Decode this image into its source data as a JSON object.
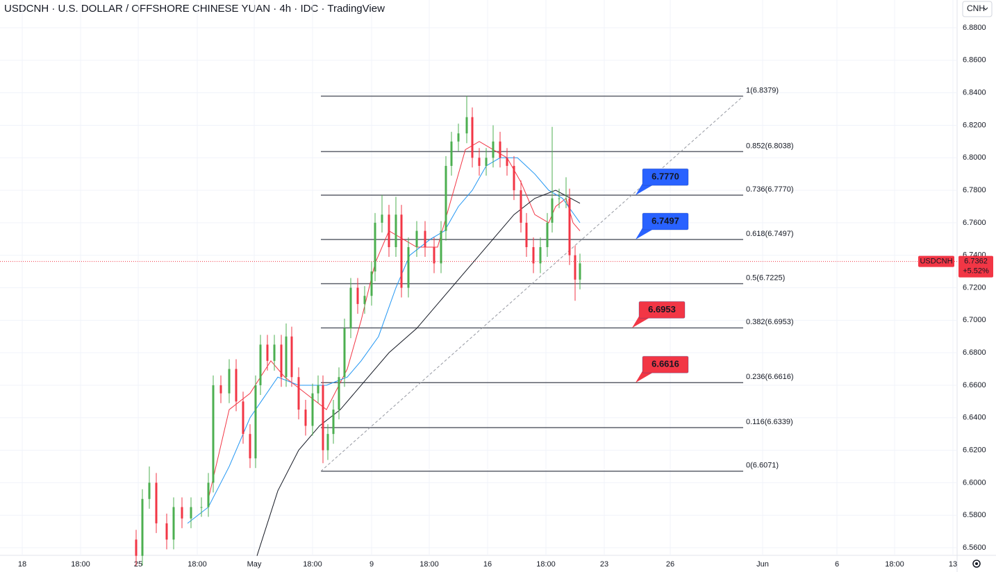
{
  "chart_data": {
    "type": "candlestick",
    "title": "USDCNH · U.S. DOLLAR / OFFSHORE CHINESE YUAN · 4h · IDC · TradingView",
    "currency_button": "CNH",
    "up_color": "#4caf50",
    "down_color": "#f23645",
    "grid": true,
    "ylim": [
      6.5553,
      6.8971
    ],
    "yticks": [
      {
        "value": 6.88,
        "label": "6.8800"
      },
      {
        "value": 6.86,
        "label": "6.8600"
      },
      {
        "value": 6.84,
        "label": "6.8400"
      },
      {
        "value": 6.82,
        "label": "6.8200"
      },
      {
        "value": 6.8,
        "label": "6.8000"
      },
      {
        "value": 6.78,
        "label": "6.7800"
      },
      {
        "value": 6.76,
        "label": "6.7600"
      },
      {
        "value": 6.74,
        "label": "6.7400"
      },
      {
        "value": 6.72,
        "label": "6.7200"
      },
      {
        "value": 6.7,
        "label": "6.7000"
      },
      {
        "value": 6.68,
        "label": "6.6800"
      },
      {
        "value": 6.66,
        "label": "6.6600"
      },
      {
        "value": 6.64,
        "label": "6.6400"
      },
      {
        "value": 6.62,
        "label": "6.6200"
      },
      {
        "value": 6.6,
        "label": "6.6000"
      },
      {
        "value": 6.58,
        "label": "6.5800"
      },
      {
        "value": 6.56,
        "label": "6.5600"
      }
    ],
    "xlim": [
      0,
      275.6
    ],
    "xticks": [
      {
        "value": 6.4,
        "label": "18"
      },
      {
        "value": 23.2,
        "label": "18:00"
      },
      {
        "value": 39.8,
        "label": "25"
      },
      {
        "value": 56.8,
        "label": "18:00"
      },
      {
        "value": 73.2,
        "label": "May"
      },
      {
        "value": 90,
        "label": "18:00"
      },
      {
        "value": 107,
        "label": "9"
      },
      {
        "value": 123.6,
        "label": "18:00"
      },
      {
        "value": 140.4,
        "label": "16"
      },
      {
        "value": 157.2,
        "label": "18:00"
      },
      {
        "value": 174,
        "label": "23"
      },
      {
        "value": 193,
        "label": "26"
      },
      {
        "value": 219.6,
        "label": "Jun"
      },
      {
        "value": 241,
        "label": "6"
      },
      {
        "value": 257.6,
        "label": "18:00"
      },
      {
        "value": 274.4,
        "label": "13"
      }
    ],
    "candles": {
      "x": [
        39.2,
        41,
        43,
        45,
        48,
        50,
        52.4,
        55,
        58,
        60,
        61.4,
        63.6,
        66,
        68,
        70,
        72,
        73.6,
        75,
        77,
        79,
        81,
        82.4,
        84,
        86,
        88,
        90,
        91.6,
        93,
        94.4,
        96,
        97.6,
        99.2,
        101,
        103,
        105,
        107,
        108,
        110,
        112,
        114,
        115.6,
        117.6,
        120,
        122.4,
        125,
        127,
        128.4,
        130,
        132,
        134.4,
        136,
        138,
        140,
        142,
        144,
        146,
        148,
        150,
        151.6,
        153.6,
        155.6,
        157.6,
        159,
        161,
        163,
        164,
        165.6,
        167
      ],
      "open": [
        6.565,
        6.555,
        6.59,
        6.6,
        6.575,
        6.565,
        6.585,
        6.578,
        6.585,
        6.585,
        6.6,
        6.66,
        6.655,
        6.67,
        6.65,
        6.63,
        6.615,
        6.66,
        6.685,
        6.675,
        6.685,
        6.665,
        6.69,
        6.665,
        6.645,
        6.635,
        6.655,
        6.66,
        6.62,
        6.63,
        6.645,
        6.665,
        6.695,
        6.72,
        6.71,
        6.715,
        6.73,
        6.76,
        6.765,
        6.745,
        6.765,
        6.72,
        6.745,
        6.755,
        6.745,
        6.735,
        6.755,
        6.795,
        6.81,
        6.815,
        6.825,
        6.8,
        6.795,
        6.8,
        6.81,
        6.8,
        6.795,
        6.78,
        6.76,
        6.745,
        6.735,
        6.745,
        6.76,
        6.775,
        6.775,
        6.775,
        6.74,
        6.725
      ],
      "high": [
        6.571,
        6.596,
        6.61,
        6.606,
        6.581,
        6.591,
        6.591,
        6.591,
        6.591,
        6.606,
        6.666,
        6.666,
        6.676,
        6.676,
        6.656,
        6.636,
        6.666,
        6.691,
        6.691,
        6.691,
        6.691,
        6.698,
        6.696,
        6.671,
        6.651,
        6.661,
        6.666,
        6.666,
        6.636,
        6.651,
        6.671,
        6.701,
        6.726,
        6.726,
        6.721,
        6.736,
        6.766,
        6.777,
        6.771,
        6.776,
        6.771,
        6.751,
        6.761,
        6.761,
        6.751,
        6.761,
        6.801,
        6.816,
        6.821,
        6.838,
        6.831,
        6.806,
        6.806,
        6.82,
        6.816,
        6.806,
        6.801,
        6.786,
        6.766,
        6.751,
        6.751,
        6.766,
        6.819,
        6.781,
        6.788,
        6.781,
        6.746,
        6.741
      ],
      "low": [
        6.549,
        6.549,
        6.584,
        6.569,
        6.559,
        6.559,
        6.572,
        6.572,
        6.579,
        6.579,
        6.594,
        6.649,
        6.649,
        6.644,
        6.624,
        6.609,
        6.609,
        6.654,
        6.669,
        6.669,
        6.659,
        6.659,
        6.659,
        6.639,
        6.629,
        6.629,
        6.649,
        6.612,
        6.614,
        6.624,
        6.639,
        6.659,
        6.689,
        6.704,
        6.704,
        6.709,
        6.724,
        6.754,
        6.739,
        6.739,
        6.714,
        6.714,
        6.739,
        6.739,
        6.729,
        6.729,
        6.749,
        6.789,
        6.804,
        6.809,
        6.794,
        6.789,
        6.789,
        6.794,
        6.794,
        6.789,
        6.774,
        6.754,
        6.739,
        6.729,
        6.729,
        6.739,
        6.754,
        6.769,
        6.769,
        6.734,
        6.712,
        6.719
      ],
      "close": [
        6.555,
        6.59,
        6.6,
        6.575,
        6.565,
        6.585,
        6.578,
        6.585,
        6.585,
        6.6,
        6.66,
        6.655,
        6.67,
        6.65,
        6.63,
        6.615,
        6.66,
        6.685,
        6.675,
        6.685,
        6.665,
        6.69,
        6.665,
        6.645,
        6.635,
        6.655,
        6.66,
        6.62,
        6.63,
        6.645,
        6.665,
        6.695,
        6.72,
        6.71,
        6.715,
        6.73,
        6.76,
        6.765,
        6.745,
        6.765,
        6.72,
        6.745,
        6.755,
        6.745,
        6.735,
        6.755,
        6.795,
        6.81,
        6.815,
        6.825,
        6.8,
        6.795,
        6.8,
        6.81,
        6.8,
        6.795,
        6.78,
        6.76,
        6.745,
        6.735,
        6.745,
        6.76,
        6.775,
        6.775,
        6.775,
        6.74,
        6.725,
        6.735
      ]
    },
    "series": [
      {
        "color": "#f23645",
        "x": [
          60,
          66,
          72,
          78,
          82,
          88,
          94,
          100,
          104,
          108,
          112,
          116,
          120,
          126,
          130,
          134,
          138,
          142,
          146,
          150,
          154,
          158,
          160,
          163,
          165,
          167
        ],
        "values": [
          6.59,
          6.645,
          6.655,
          6.675,
          6.665,
          6.655,
          6.645,
          6.67,
          6.7,
          6.735,
          6.755,
          6.75,
          6.745,
          6.745,
          6.775,
          6.805,
          6.81,
          6.805,
          6.8,
          6.785,
          6.765,
          6.76,
          6.77,
          6.775,
          6.76,
          6.755
        ]
      },
      {
        "color": "#2196f3",
        "x": [
          54,
          60,
          66,
          72,
          80,
          86,
          94,
          100,
          104,
          109,
          114,
          118,
          124,
          128,
          132,
          136,
          140,
          144,
          149,
          154,
          158,
          162,
          167
        ],
        "values": [
          6.575,
          6.585,
          6.61,
          6.64,
          6.665,
          6.66,
          6.66,
          6.665,
          6.675,
          6.69,
          6.72,
          6.74,
          6.75,
          6.755,
          6.77,
          6.78,
          6.795,
          6.8,
          6.8,
          6.79,
          6.78,
          6.775,
          6.76
        ]
      },
      {
        "color": "#131722",
        "x": [
          74,
          80,
          86,
          92,
          98,
          104,
          112,
          120,
          128,
          136,
          142,
          148,
          154,
          160,
          167
        ],
        "values": [
          6.555,
          6.595,
          6.62,
          6.635,
          6.645,
          6.66,
          6.68,
          6.695,
          6.715,
          6.735,
          6.75,
          6.765,
          6.775,
          6.78,
          6.772
        ]
      }
    ],
    "fib_x": [
      92.4,
      214
    ],
    "fib_levels": [
      {
        "value": 6.8379,
        "label": "1(6.8379)"
      },
      {
        "value": 6.8038,
        "label": "0.852(6.8038)"
      },
      {
        "value": 6.777,
        "label": "0.736(6.7770)"
      },
      {
        "value": 6.7497,
        "label": "0.618(6.7497)"
      },
      {
        "value": 6.7225,
        "label": "0.5(6.7225)"
      },
      {
        "value": 6.6953,
        "label": "0.382(6.6953)"
      },
      {
        "value": 6.6616,
        "label": "0.236(6.6616)"
      },
      {
        "value": 6.6339,
        "label": "0.116(6.6339)"
      },
      {
        "value": 6.6071,
        "label": "0(6.6071)"
      }
    ],
    "callouts": [
      {
        "x": 183,
        "value": 6.777,
        "label": "6.7770",
        "color": "#2962ff"
      },
      {
        "x": 183,
        "value": 6.7497,
        "label": "6.7497",
        "color": "#2962ff"
      },
      {
        "x": 182,
        "value": 6.6953,
        "label": "6.6953",
        "color": "#f23645"
      },
      {
        "x": 183,
        "value": 6.6616,
        "label": "6.6616",
        "color": "#f23645"
      }
    ],
    "last_price": {
      "symbol": "USDCNH",
      "value": 6.7362,
      "label": "6.7362",
      "change": "+5.52%",
      "color": "#f23645"
    }
  }
}
